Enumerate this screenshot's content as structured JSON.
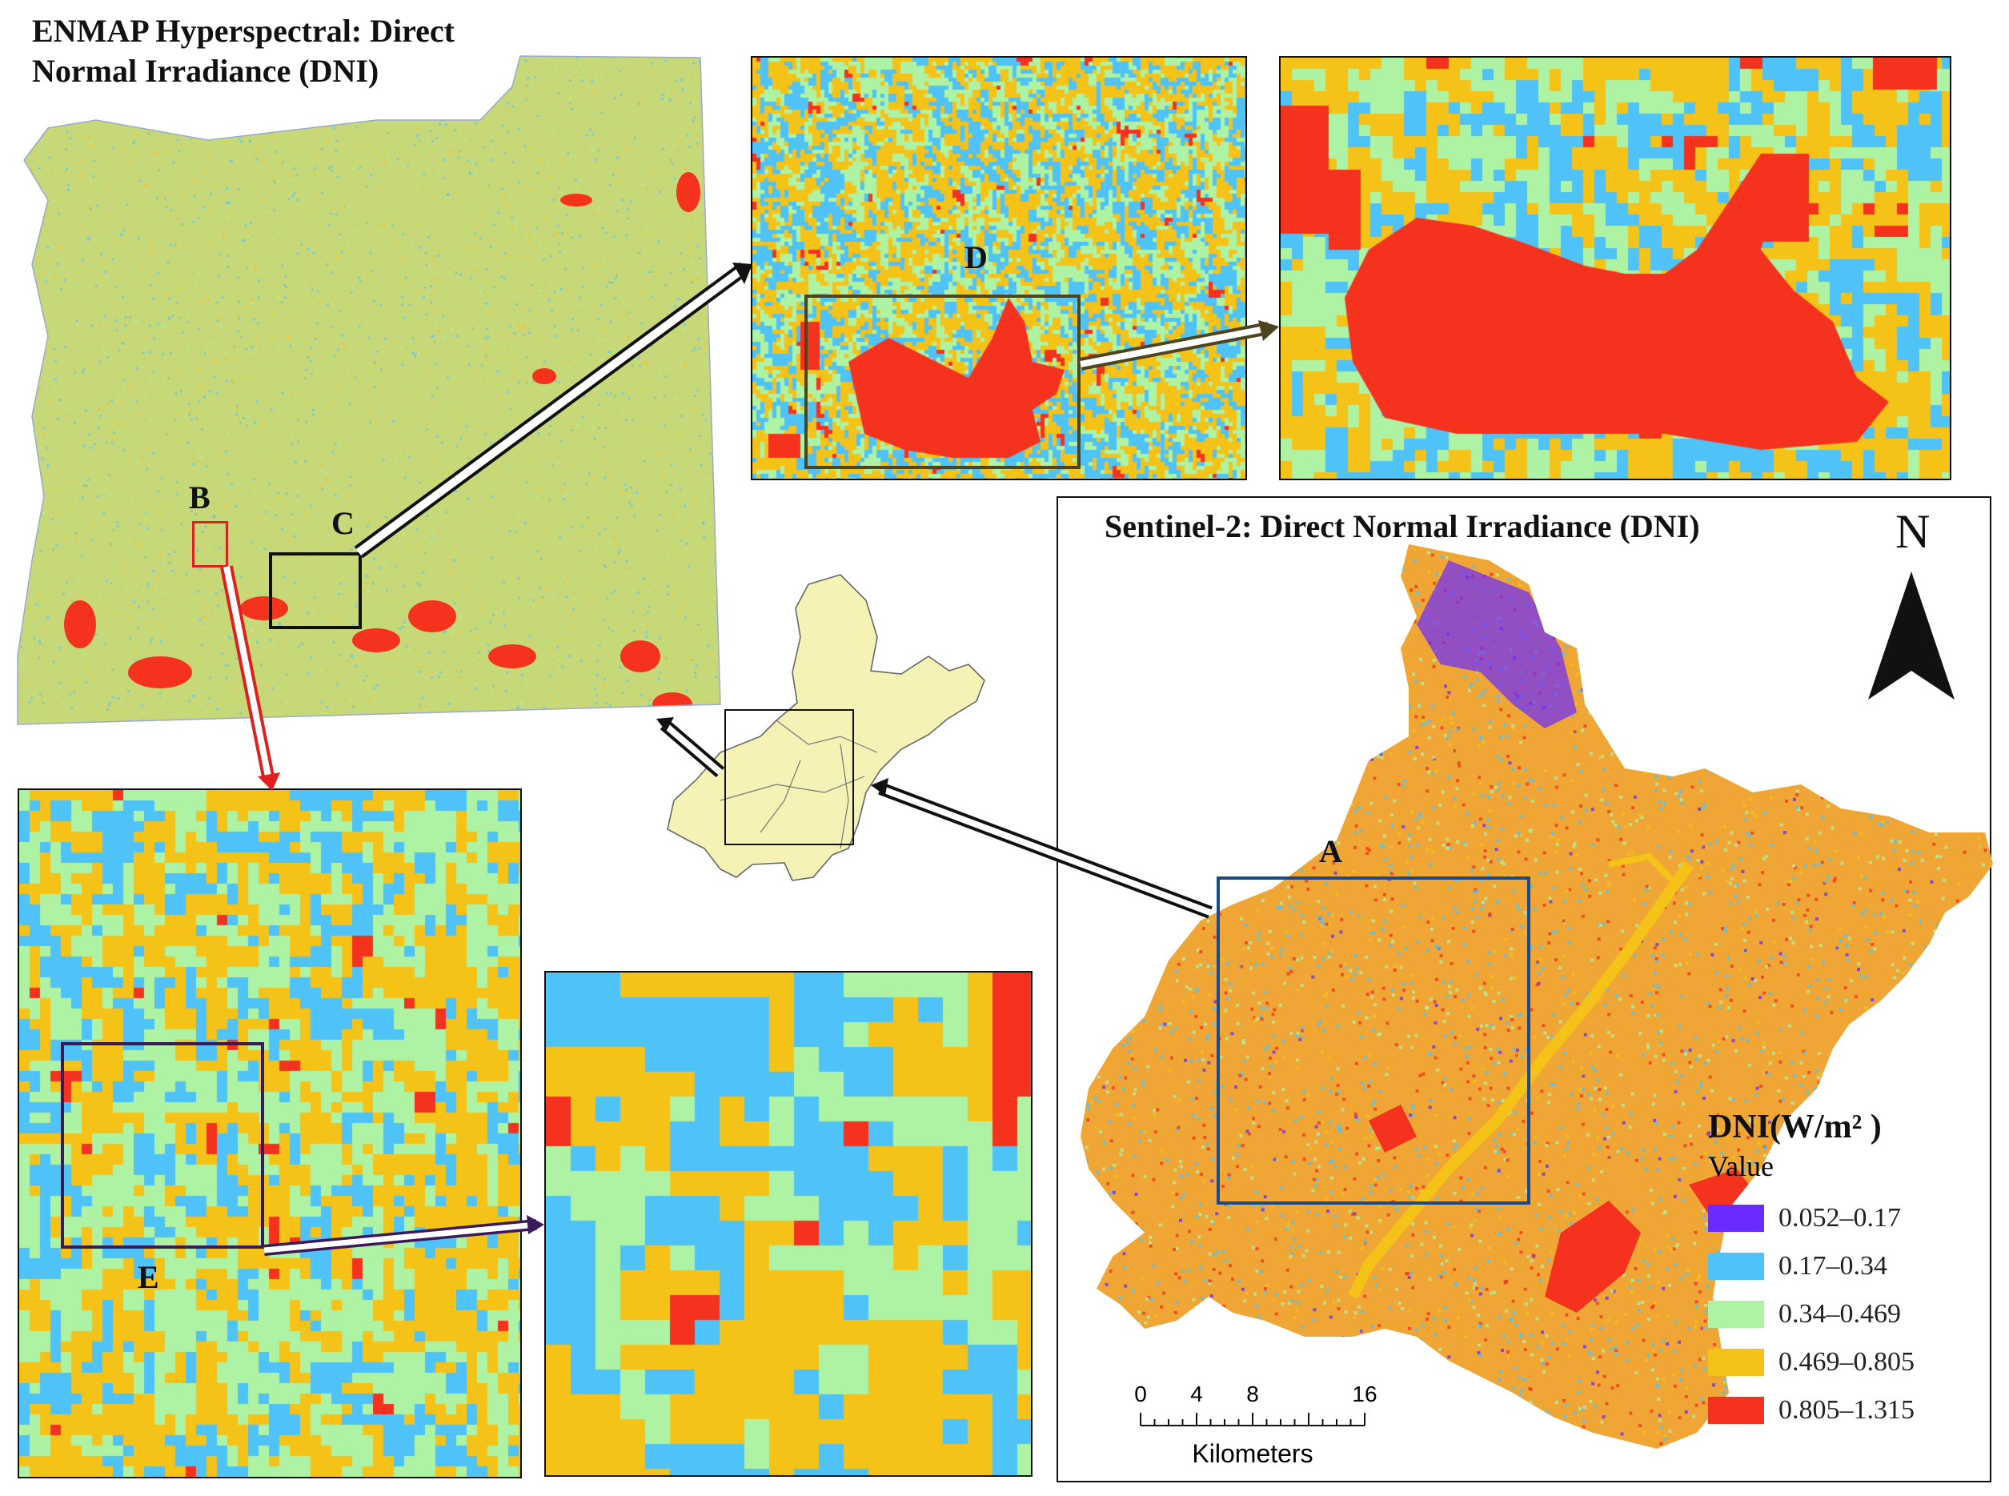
{
  "titles": {
    "enmap": "ENMAP Hyperspectral: Direct Normal Irradiance (DNI)",
    "enmap_line1": "ENMAP Hyperspectral: Direct",
    "enmap_line2": "Normal Irradiance (DNI)",
    "sentinel": "Sentinel-2: Direct Normal Irradiance (DNI)"
  },
  "labels": {
    "a": "A",
    "b": "B",
    "c": "C",
    "d": "D",
    "e": "E"
  },
  "north": "N",
  "legend": {
    "title": "DNI(W/m² )",
    "subtitle": "Value",
    "classes": [
      {
        "range": "0.052–0.17",
        "color": "#6a2bff"
      },
      {
        "range": "0.17–0.34",
        "color": "#4fc3f7"
      },
      {
        "range": "0.34–0.469",
        "color": "#aef2a4"
      },
      {
        "range": "0.469–0.805",
        "color": "#f5c218"
      },
      {
        "range": "0.805–1.315",
        "color": "#f4321e"
      }
    ]
  },
  "scale": {
    "ticks": [
      "0",
      "4",
      "8",
      "16"
    ],
    "unit": "Kilometers"
  },
  "colors": {
    "purple": "#6a2bff",
    "blue": "#4fc3f7",
    "green": "#aef2a4",
    "orange": "#f5c218",
    "red": "#f4321e",
    "enmap_base": "#c7d878",
    "locator_fill": "#f4f2b4",
    "box_red": "#e02020",
    "box_black": "#111111",
    "box_olive": "#4f4420",
    "box_navy": "#1a4a8a",
    "box_purple": "#3a1a5a"
  }
}
